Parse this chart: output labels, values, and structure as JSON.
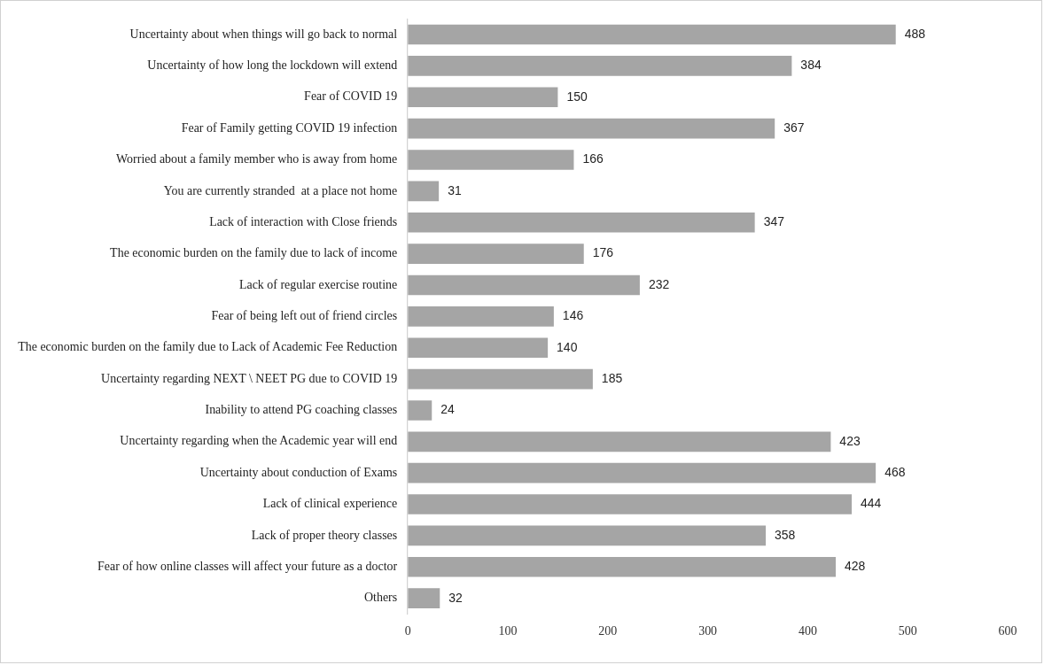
{
  "chart_data": {
    "type": "bar",
    "orientation": "horizontal",
    "categories": [
      "Uncertainty about when things will go back to normal",
      "Uncertainty of how long the lockdown will extend",
      "Fear of COVID 19",
      "Fear of Family getting COVID 19 infection",
      "Worried about a family member who is away from home",
      "You are currently stranded  at a place not home",
      "Lack of interaction with Close friends",
      "The economic burden on the family due to lack of income",
      "Lack of regular exercise routine",
      "Fear of being left out of friend circles",
      "The economic burden on the family due to Lack of Academic Fee Reduction",
      "Uncertainty regarding NEXT \\ NEET PG due to COVID 19",
      "Inability to attend PG coaching classes",
      "Uncertainty regarding when the Academic year will end",
      "Uncertainty about conduction of Exams",
      "Lack of clinical experience",
      "Lack of proper theory classes",
      "Fear of how online classes will affect your future as a doctor",
      "Others"
    ],
    "values": [
      488,
      384,
      150,
      367,
      166,
      31,
      347,
      176,
      232,
      146,
      140,
      185,
      24,
      423,
      468,
      444,
      358,
      428,
      32
    ],
    "color": "#a5a5a5",
    "xlim": [
      0,
      600
    ],
    "xticks": [
      0,
      100,
      200,
      300,
      400,
      500,
      600
    ],
    "data_labels": true,
    "grid": false,
    "legend": false
  }
}
